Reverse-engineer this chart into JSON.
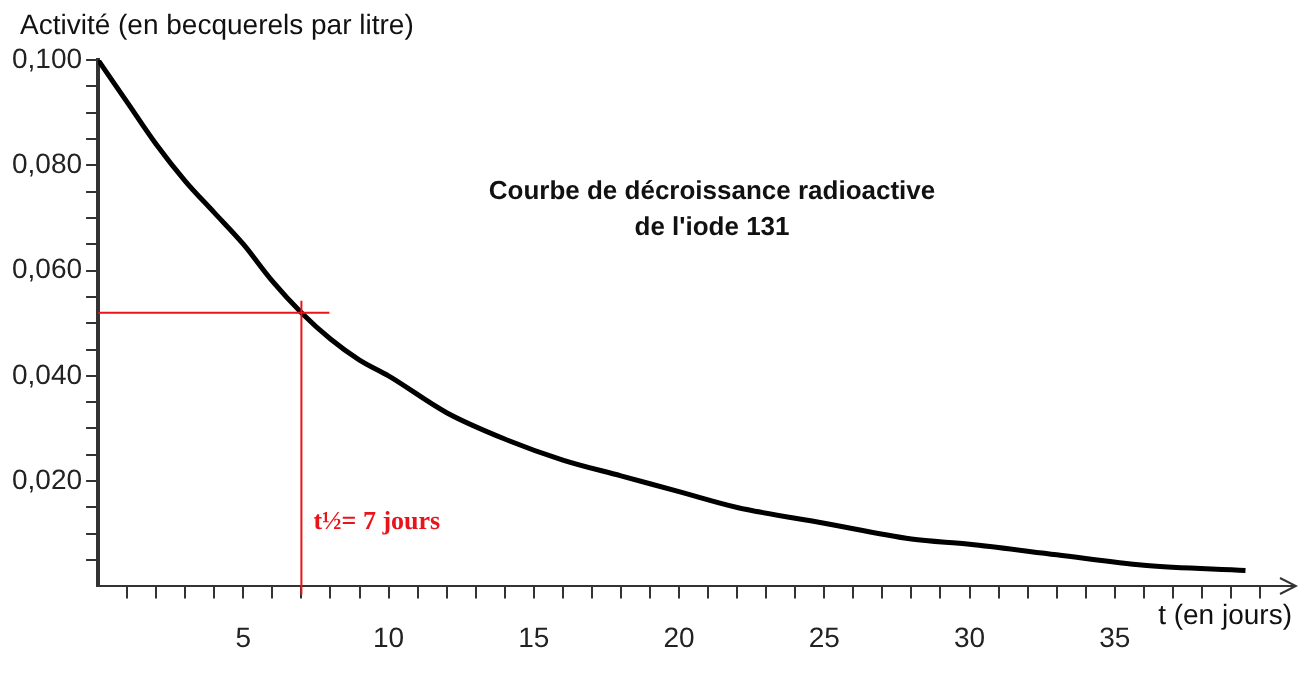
{
  "chart_data": {
    "type": "line",
    "title": "Courbe de décroissance radioactive\nde l'iode 131",
    "xlabel": "t (en jours)",
    "ylabel": "Activité (en becquerels par litre)",
    "x": [
      0,
      1,
      2,
      3,
      4,
      5,
      6,
      7,
      8,
      9,
      10,
      12,
      14,
      16,
      18,
      20,
      22,
      25,
      28,
      30,
      33,
      36,
      39.5
    ],
    "series": [
      {
        "color": "#000000",
        "values": [
          0.1,
          0.092,
          0.084,
          0.077,
          0.071,
          0.065,
          0.058,
          0.052,
          0.047,
          0.043,
          0.04,
          0.033,
          0.028,
          0.024,
          0.021,
          0.018,
          0.015,
          0.012,
          0.009,
          0.008,
          0.006,
          0.004,
          0.003
        ]
      }
    ],
    "xlim": [
      0,
      40
    ],
    "xticks": [
      {
        "value": 1,
        "label": null
      },
      {
        "value": 2,
        "label": null
      },
      {
        "value": 3,
        "label": null
      },
      {
        "value": 4,
        "label": null
      },
      5,
      {
        "value": 6,
        "label": null
      },
      {
        "value": 7,
        "label": null
      },
      {
        "value": 8,
        "label": null
      },
      {
        "value": 9,
        "label": null
      },
      10,
      {
        "value": 11,
        "label": null
      },
      {
        "value": 12,
        "label": null
      },
      {
        "value": 13,
        "label": null
      },
      {
        "value": 14,
        "label": null
      },
      15,
      {
        "value": 16,
        "label": null
      },
      {
        "value": 17,
        "label": null
      },
      {
        "value": 18,
        "label": null
      },
      {
        "value": 19,
        "label": null
      },
      20,
      {
        "value": 21,
        "label": null
      },
      {
        "value": 22,
        "label": null
      },
      {
        "value": 23,
        "label": null
      },
      {
        "value": 24,
        "label": null
      },
      25,
      {
        "value": 26,
        "label": null
      },
      {
        "value": 27,
        "label": null
      },
      {
        "value": 28,
        "label": null
      },
      {
        "value": 29,
        "label": null
      },
      30,
      {
        "value": 31,
        "label": null
      },
      {
        "value": 32,
        "label": null
      },
      {
        "value": 33,
        "label": null
      },
      {
        "value": 34,
        "label": null
      },
      35,
      {
        "value": 36,
        "label": null
      },
      {
        "value": 37,
        "label": null
      },
      {
        "value": 38,
        "label": null
      },
      {
        "value": 39,
        "label": null
      },
      {
        "value": 40,
        "label": null
      }
    ],
    "ylim": [
      0,
      0.1
    ],
    "yticks": [
      {
        "value": 0.005,
        "label": null
      },
      {
        "value": 0.01,
        "label": null
      },
      {
        "value": 0.015,
        "label": null
      },
      {
        "value": 0.02,
        "label": "0,020"
      },
      {
        "value": 0.025,
        "label": null
      },
      {
        "value": 0.03,
        "label": null
      },
      {
        "value": 0.035,
        "label": null
      },
      {
        "value": 0.04,
        "label": "0,040"
      },
      {
        "value": 0.045,
        "label": null
      },
      {
        "value": 0.05,
        "label": null
      },
      {
        "value": 0.055,
        "label": null
      },
      {
        "value": 0.06,
        "label": "0,060"
      },
      {
        "value": 0.065,
        "label": null
      },
      {
        "value": 0.07,
        "label": null
      },
      {
        "value": 0.075,
        "label": null
      },
      {
        "value": 0.08,
        "label": "0,080"
      },
      {
        "value": 0.085,
        "label": null
      },
      {
        "value": 0.09,
        "label": null
      },
      {
        "value": 0.095,
        "label": null
      },
      {
        "value": 0.1,
        "label": "0,100"
      }
    ],
    "ref_lines": [
      {
        "axis": "x",
        "value": 7,
        "label": "t½= 7 jours",
        "color": "#e8141a"
      },
      {
        "axis": "y",
        "value": 0.052,
        "color": "#e8141a"
      }
    ],
    "grid": false,
    "legend": false,
    "marker": "none",
    "line_style": "solid"
  }
}
